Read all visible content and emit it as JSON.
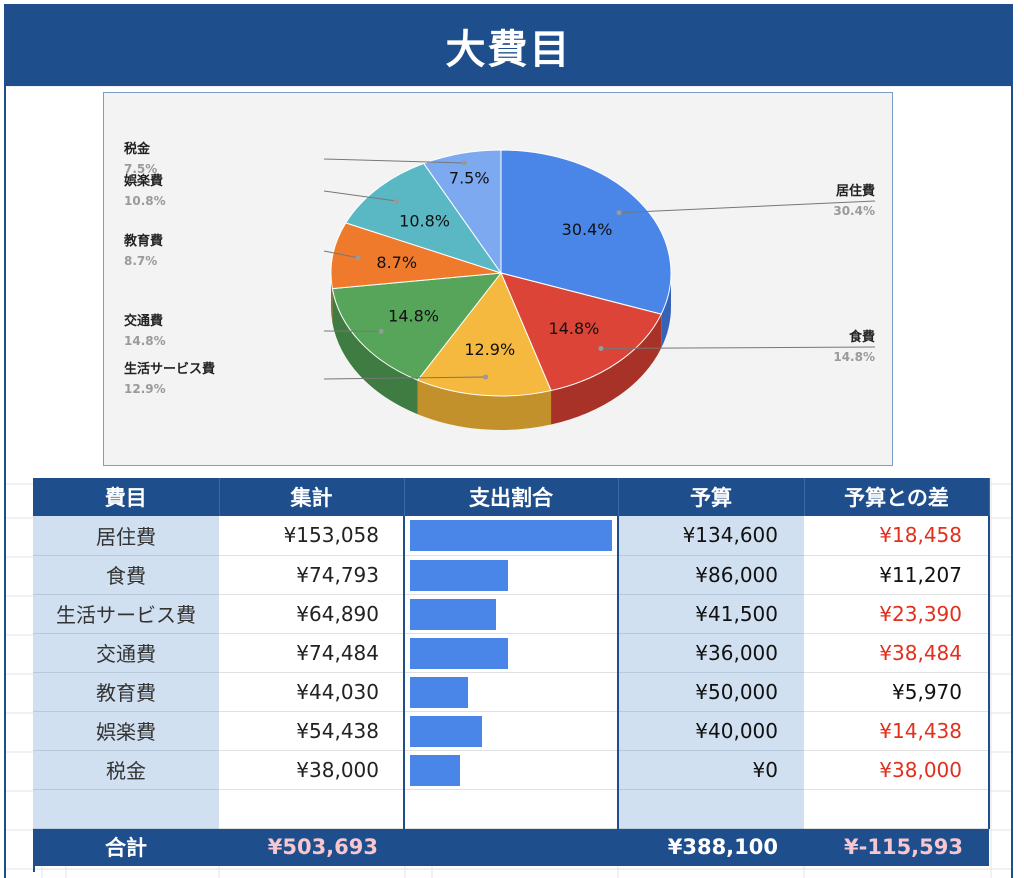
{
  "title": "大費目",
  "colors": {
    "header": "#1f4e8c",
    "bar": "#4a86e8",
    "negative": "#e0301e",
    "slices": [
      "#4a86e8",
      "#db4437",
      "#f4b93e",
      "#57a55a",
      "#ef7a2c",
      "#5ab8c4",
      "#7da9f0"
    ],
    "slices_side": [
      "#3563b8",
      "#a83227",
      "#c2912c",
      "#3f7c42",
      "#bb5d1f",
      "#418f99",
      "#5d86c6"
    ]
  },
  "chart_data": {
    "type": "pie",
    "title": "",
    "three_d": true,
    "slices": [
      {
        "label": "居住費",
        "value": 30.4,
        "text": "30.4%"
      },
      {
        "label": "食費",
        "value": 14.8,
        "text": "14.8%"
      },
      {
        "label": "生活サービス費",
        "value": 12.9,
        "text": "12.9%"
      },
      {
        "label": "交通費",
        "value": 14.8,
        "text": "14.8%"
      },
      {
        "label": "教育費",
        "value": 8.7,
        "text": "8.7%"
      },
      {
        "label": "娯楽費",
        "value": 10.8,
        "text": "10.8%"
      },
      {
        "label": "税金",
        "value": 7.5,
        "text": "7.5%"
      }
    ]
  },
  "table": {
    "headers": [
      "費目",
      "集計",
      "支出割合",
      "予算",
      "予算との差"
    ],
    "rows": [
      {
        "cat": "居住費",
        "sum": "¥153,058",
        "ratio": 0.304,
        "budget": "¥134,600",
        "diff": "¥18,458",
        "neg": true
      },
      {
        "cat": "食費",
        "sum": "¥74,793",
        "ratio": 0.148,
        "budget": "¥86,000",
        "diff": "¥11,207",
        "neg": false
      },
      {
        "cat": "生活サービス費",
        "sum": "¥64,890",
        "ratio": 0.129,
        "budget": "¥41,500",
        "diff": "¥23,390",
        "neg": true
      },
      {
        "cat": "交通費",
        "sum": "¥74,484",
        "ratio": 0.148,
        "budget": "¥36,000",
        "diff": "¥38,484",
        "neg": true
      },
      {
        "cat": "教育費",
        "sum": "¥44,030",
        "ratio": 0.087,
        "budget": "¥50,000",
        "diff": "¥5,970",
        "neg": false
      },
      {
        "cat": "娯楽費",
        "sum": "¥54,438",
        "ratio": 0.108,
        "budget": "¥40,000",
        "diff": "¥14,438",
        "neg": true
      },
      {
        "cat": "税金",
        "sum": "¥38,000",
        "ratio": 0.075,
        "budget": "¥0",
        "diff": "¥38,000",
        "neg": true
      }
    ],
    "total": {
      "label": "合計",
      "sum": "¥503,693",
      "budget": "¥388,100",
      "diff": "¥-115,593"
    }
  }
}
